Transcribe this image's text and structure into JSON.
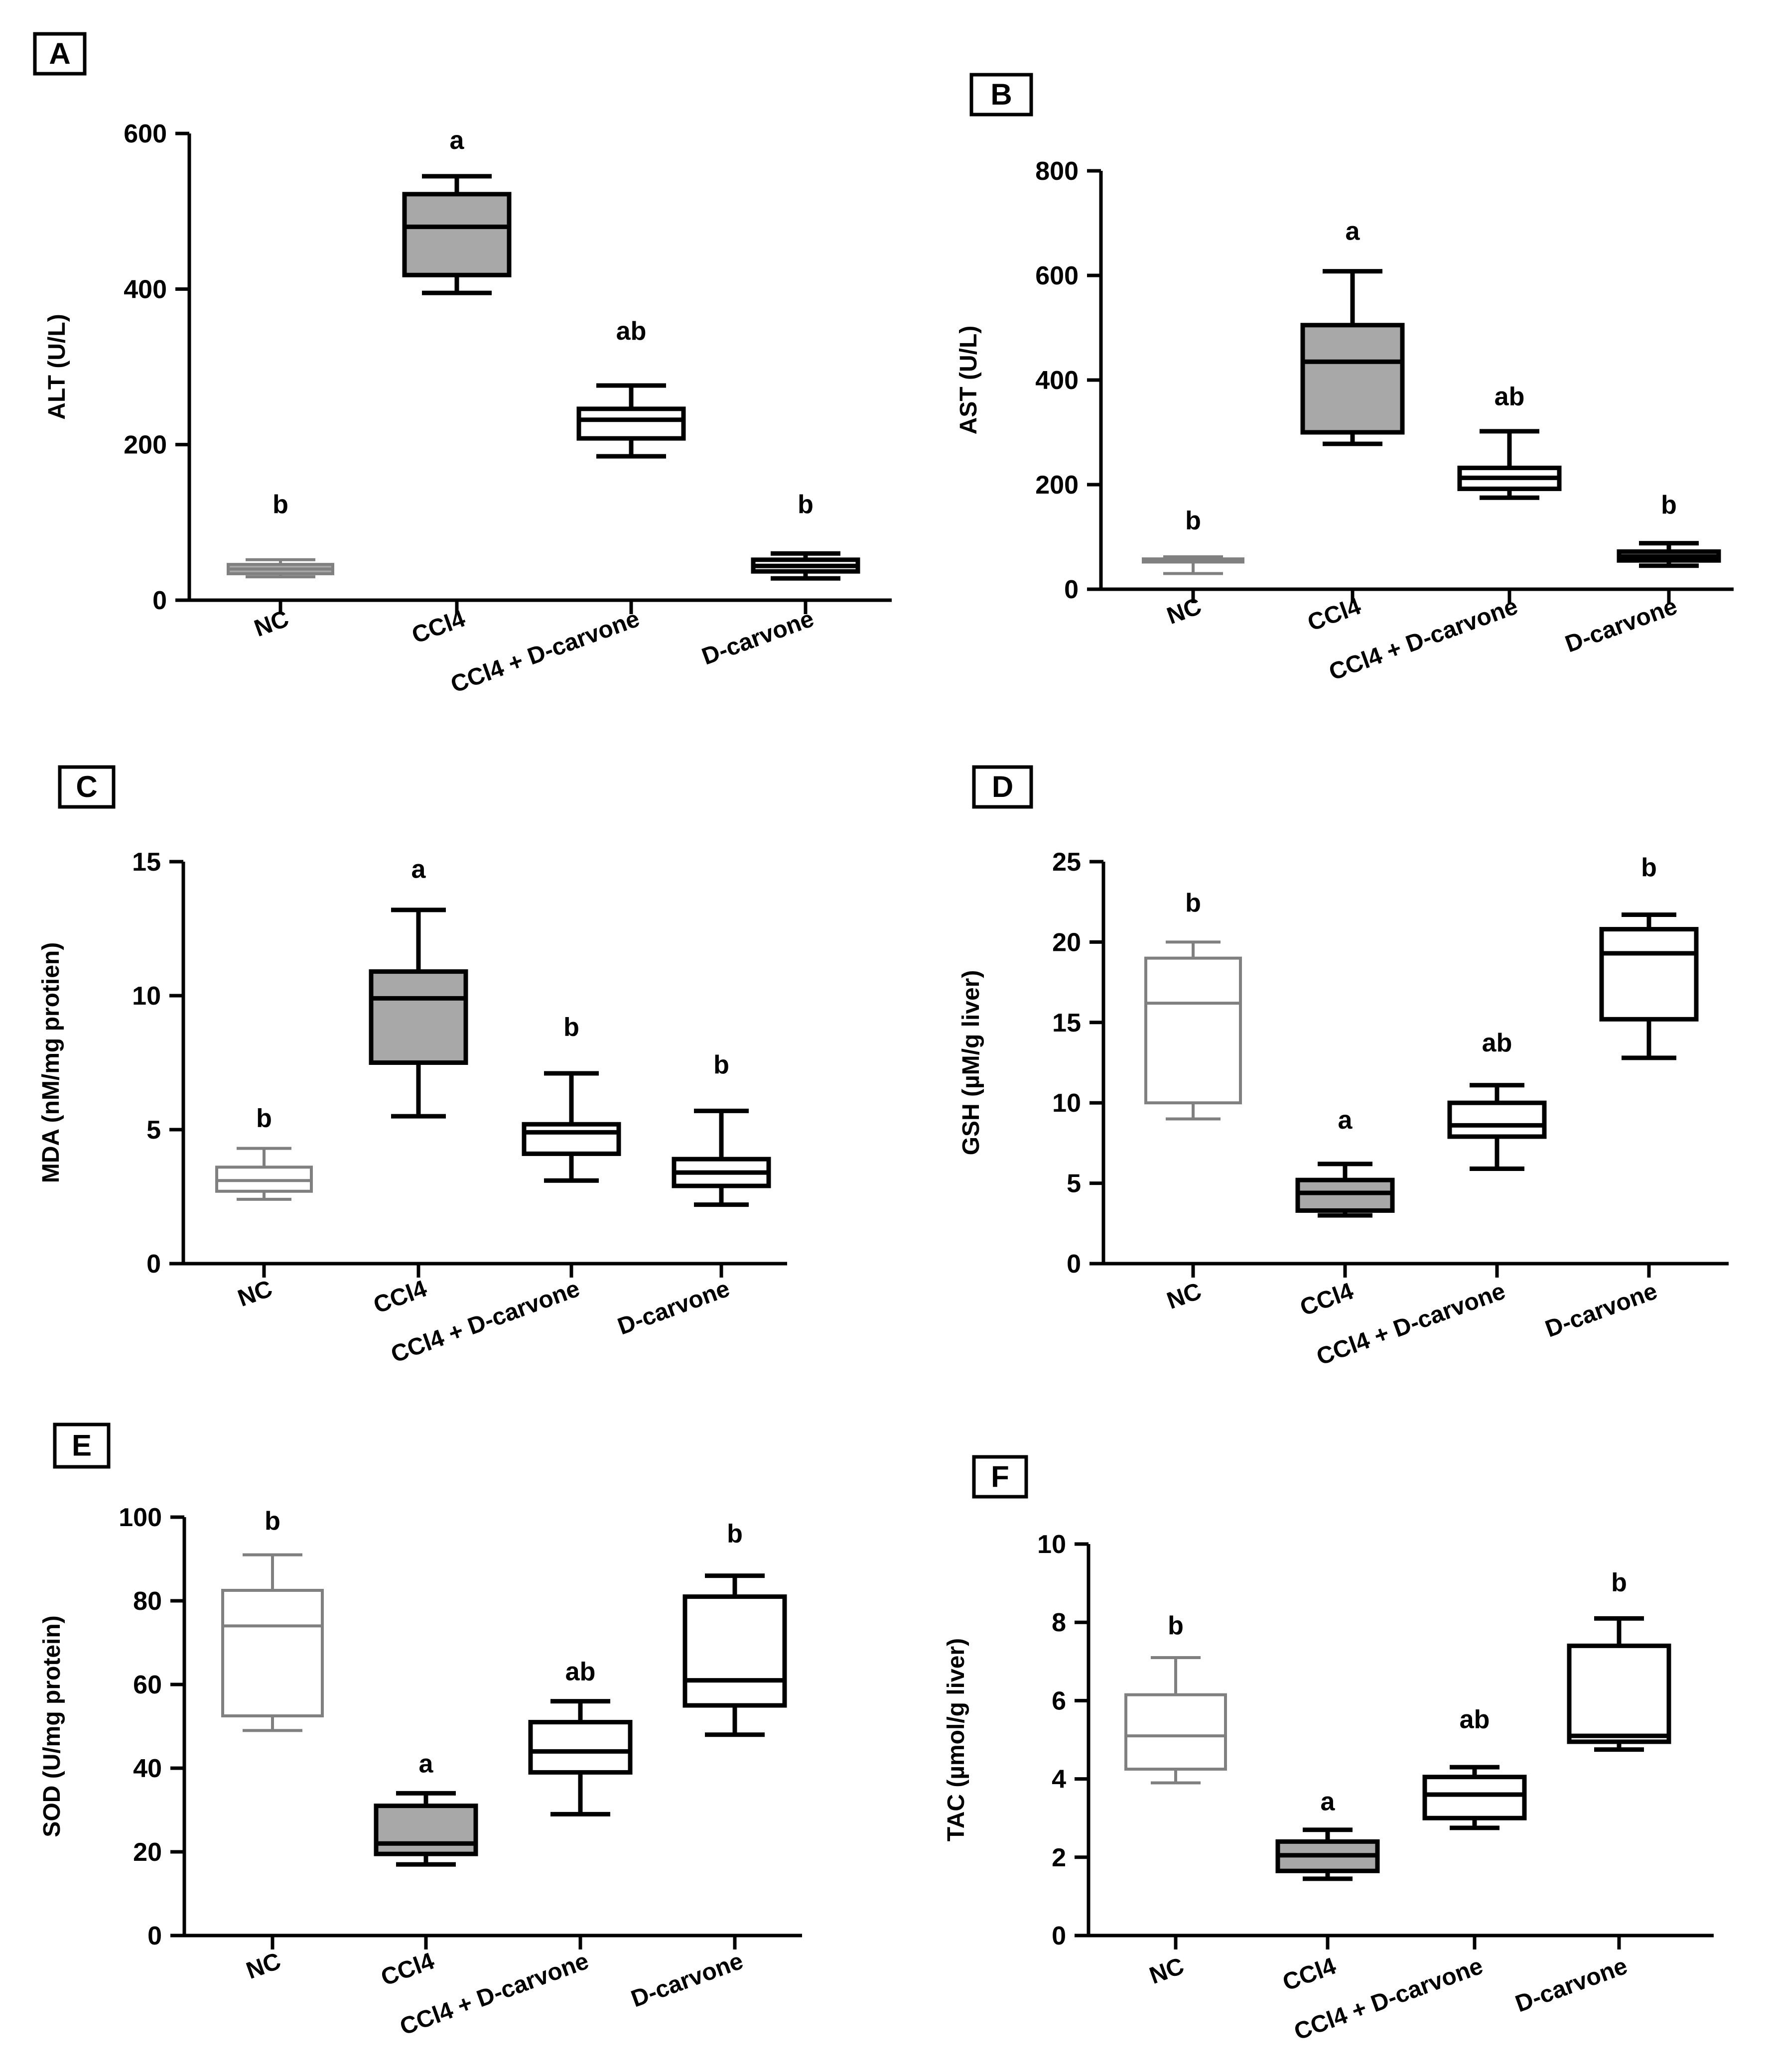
{
  "chart_data": [
    {
      "type": "box",
      "panel": "A",
      "ylabel": "ALT (U/L)",
      "ylim": [
        0,
        600
      ],
      "yticks": [
        0,
        200,
        400,
        600
      ],
      "categories": [
        "NC",
        "CCl4",
        "CCl4 + D-carvone",
        "D-carvone"
      ],
      "colors": [
        "#808080",
        "#000000",
        "#000000",
        "#000000"
      ],
      "fills": [
        "#a8a8a8",
        "#a8a8a8",
        "#ffffff",
        "#ffffff"
      ],
      "boxes": [
        {
          "min": 30,
          "q1": 34,
          "median": 40,
          "q3": 46,
          "max": 52
        },
        {
          "min": 395,
          "q1": 418,
          "median": 480,
          "q3": 522,
          "max": 545
        },
        {
          "min": 185,
          "q1": 208,
          "median": 232,
          "q3": 246,
          "max": 276
        },
        {
          "min": 28,
          "q1": 37,
          "median": 44,
          "q3": 52,
          "max": 60
        }
      ],
      "significance": [
        "b",
        "a",
        "ab",
        "b"
      ],
      "sig_values": [
        112,
        580,
        335,
        112
      ]
    },
    {
      "type": "box",
      "panel": "B",
      "ylabel": "AST (U/L)",
      "ylim": [
        0,
        800
      ],
      "yticks": [
        0,
        200,
        400,
        600,
        800
      ],
      "categories": [
        "NC",
        "CCl4",
        "CCl4 + D-carvone",
        "D-carvone"
      ],
      "colors": [
        "#808080",
        "#000000",
        "#000000",
        "#000000"
      ],
      "fills": [
        "#a8a8a8",
        "#a8a8a8",
        "#ffffff",
        "#ffffff"
      ],
      "boxes": [
        {
          "min": 30,
          "q1": 52,
          "median": 55,
          "q3": 58,
          "max": 62
        },
        {
          "min": 278,
          "q1": 300,
          "median": 435,
          "q3": 505,
          "max": 608
        },
        {
          "min": 175,
          "q1": 192,
          "median": 213,
          "q3": 232,
          "max": 302
        },
        {
          "min": 45,
          "q1": 55,
          "median": 63,
          "q3": 72,
          "max": 88
        }
      ],
      "significance": [
        "b",
        "a",
        "ab",
        "b"
      ],
      "sig_values": [
        115,
        668,
        352,
        145
      ]
    },
    {
      "type": "box",
      "panel": "C",
      "ylabel": "MDA (nM/mg protien)",
      "ylim": [
        0,
        15
      ],
      "yticks": [
        0,
        5,
        10,
        15
      ],
      "categories": [
        "NC",
        "CCl4",
        "CCl4 + D-carvone",
        "D-carvone"
      ],
      "colors": [
        "#808080",
        "#000000",
        "#000000",
        "#000000"
      ],
      "fills": [
        "#ffffff",
        "#a8a8a8",
        "#ffffff",
        "#ffffff"
      ],
      "boxes": [
        {
          "min": 2.4,
          "q1": 2.7,
          "median": 3.1,
          "q3": 3.6,
          "max": 4.3
        },
        {
          "min": 5.5,
          "q1": 7.5,
          "median": 9.9,
          "q3": 10.9,
          "max": 13.2
        },
        {
          "min": 3.1,
          "q1": 4.1,
          "median": 4.9,
          "q3": 5.2,
          "max": 7.1
        },
        {
          "min": 2.2,
          "q1": 2.9,
          "median": 3.4,
          "q3": 3.9,
          "max": 5.7
        }
      ],
      "significance": [
        "b",
        "a",
        "b",
        "b"
      ],
      "sig_values": [
        5.1,
        14.4,
        8.5,
        7.1
      ]
    },
    {
      "type": "box",
      "panel": "D",
      "ylabel": "GSH (µM/g liver)",
      "ylim": [
        0,
        25
      ],
      "yticks": [
        0,
        5,
        10,
        15,
        20,
        25
      ],
      "categories": [
        "NC",
        "CCl4",
        "CCl4 + D-carvone",
        "D-carvone"
      ],
      "colors": [
        "#808080",
        "#000000",
        "#000000",
        "#000000"
      ],
      "fills": [
        "#ffffff",
        "#a8a8a8",
        "#ffffff",
        "#ffffff"
      ],
      "boxes": [
        {
          "min": 9.0,
          "q1": 10.0,
          "median": 16.2,
          "q3": 19.0,
          "max": 20.0
        },
        {
          "min": 3.0,
          "q1": 3.3,
          "median": 4.4,
          "q3": 5.2,
          "max": 6.2
        },
        {
          "min": 5.9,
          "q1": 7.9,
          "median": 8.6,
          "q3": 10.0,
          "max": 11.1
        },
        {
          "min": 12.8,
          "q1": 15.2,
          "median": 19.3,
          "q3": 20.8,
          "max": 21.7
        }
      ],
      "significance": [
        "b",
        "a",
        "ab",
        "b"
      ],
      "sig_values": [
        21.9,
        8.4,
        13.2,
        24.1
      ]
    },
    {
      "type": "box",
      "panel": "E",
      "ylabel": "SOD (U/mg protein)",
      "ylim": [
        0,
        100
      ],
      "yticks": [
        0,
        20,
        40,
        60,
        80,
        100
      ],
      "categories": [
        "NC",
        "CCl4",
        "CCl4 + D-carvone",
        "D-carvone"
      ],
      "colors": [
        "#808080",
        "#000000",
        "#000000",
        "#000000"
      ],
      "fills": [
        "#ffffff",
        "#a8a8a8",
        "#ffffff",
        "#ffffff"
      ],
      "boxes": [
        {
          "min": 49,
          "q1": 52.5,
          "median": 74,
          "q3": 82.5,
          "max": 91
        },
        {
          "min": 17,
          "q1": 19.5,
          "median": 22,
          "q3": 31,
          "max": 34
        },
        {
          "min": 29,
          "q1": 39,
          "median": 44,
          "q3": 51,
          "max": 56
        },
        {
          "min": 48,
          "q1": 55,
          "median": 61,
          "q3": 81,
          "max": 86
        }
      ],
      "significance": [
        "b",
        "a",
        "ab",
        "b"
      ],
      "sig_values": [
        97,
        39,
        61,
        94
      ]
    },
    {
      "type": "box",
      "panel": "F",
      "ylabel": "TAC (µmol/g liver)",
      "ylim": [
        0,
        10
      ],
      "yticks": [
        0,
        2,
        4,
        6,
        8,
        10
      ],
      "categories": [
        "NC",
        "CCl4",
        "CCl4 + D-carvone",
        "D-carvone"
      ],
      "colors": [
        "#808080",
        "#000000",
        "#000000",
        "#000000"
      ],
      "fills": [
        "#ffffff",
        "#a8a8a8",
        "#ffffff",
        "#ffffff"
      ],
      "boxes": [
        {
          "min": 3.9,
          "q1": 4.25,
          "median": 5.1,
          "q3": 6.15,
          "max": 7.1
        },
        {
          "min": 1.45,
          "q1": 1.65,
          "median": 2.05,
          "q3": 2.4,
          "max": 2.7
        },
        {
          "min": 2.75,
          "q1": 3.0,
          "median": 3.6,
          "q3": 4.05,
          "max": 4.3
        },
        {
          "min": 4.75,
          "q1": 4.95,
          "median": 5.1,
          "q3": 7.4,
          "max": 8.1
        }
      ],
      "significance": [
        "b",
        "a",
        "ab",
        "b"
      ],
      "sig_values": [
        7.7,
        3.2,
        5.3,
        8.8
      ]
    }
  ]
}
